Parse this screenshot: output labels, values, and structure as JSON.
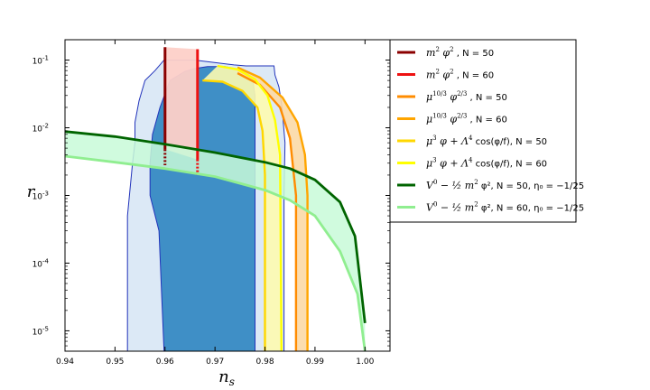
{
  "chart_data": {
    "type": "line",
    "title": "",
    "xlabel": "n_s",
    "ylabel": "r",
    "xlim": [
      0.94,
      1.005
    ],
    "ylim": [
      5e-06,
      0.2
    ],
    "yscale": "log",
    "grid": false,
    "legend_placement": "outside-right-top",
    "x_ticks": [
      "0.94",
      "0.95",
      "0.96",
      "0.97",
      "0.98",
      "0.99",
      "1.00"
    ],
    "y_ticks": [
      {
        "value": 0.1,
        "base": "10",
        "exp": "-1"
      },
      {
        "value": 0.01,
        "base": "10",
        "exp": "-2"
      },
      {
        "value": 0.001,
        "base": "10",
        "exp": "-3"
      },
      {
        "value": 0.0001,
        "base": "10",
        "exp": "-4"
      },
      {
        "value": 1e-05,
        "base": "10",
        "exp": "-5"
      }
    ],
    "contours": {
      "outer_fill": "#dce9f6",
      "inner_fill": "#3f8fc6",
      "edge": "#2233bb",
      "outer": [
        [
          0.9525,
          5e-06
        ],
        [
          0.9525,
          0.0005
        ],
        [
          0.9535,
          0.003
        ],
        [
          0.954,
          0.006
        ],
        [
          0.954,
          0.012
        ],
        [
          0.9548,
          0.025
        ],
        [
          0.956,
          0.05
        ],
        [
          0.958,
          0.07
        ],
        [
          0.9598,
          0.1
        ],
        [
          0.966,
          0.1
        ],
        [
          0.9738,
          0.085
        ],
        [
          0.9762,
          0.082
        ],
        [
          0.9818,
          0.082
        ],
        [
          0.982,
          0.06
        ],
        [
          0.9828,
          0.04
        ],
        [
          0.9834,
          0.02
        ],
        [
          0.984,
          0.006
        ],
        [
          0.9838,
          0.001
        ],
        [
          0.9838,
          0.0001
        ],
        [
          0.9838,
          5e-06
        ]
      ],
      "inner": [
        [
          0.9598,
          5e-06
        ],
        [
          0.9588,
          0.0003
        ],
        [
          0.957,
          0.001
        ],
        [
          0.957,
          0.003
        ],
        [
          0.9575,
          0.008
        ],
        [
          0.959,
          0.02
        ],
        [
          0.961,
          0.05
        ],
        [
          0.964,
          0.068
        ],
        [
          0.966,
          0.075
        ],
        [
          0.9685,
          0.08
        ],
        [
          0.972,
          0.08
        ],
        [
          0.9758,
          0.07
        ],
        [
          0.9775,
          0.055
        ],
        [
          0.978,
          0.03
        ],
        [
          0.978,
          0.01
        ],
        [
          0.978,
          0.001
        ],
        [
          0.978,
          5e-06
        ]
      ]
    },
    "bands": [
      {
        "fill": "#fdd0c8",
        "opacity": 0.95,
        "upper": [
          [
            0.96,
            0.155
          ],
          [
            0.9665,
            0.145
          ]
        ],
        "lower": [
          [
            0.96,
            0.0048
          ],
          [
            0.9665,
            0.0034
          ]
        ]
      },
      {
        "fill": "#fdfbb0",
        "opacity": 0.9,
        "upper": [
          [
            0.9705,
            0.082
          ],
          [
            0.9745,
            0.073
          ],
          [
            0.978,
            0.052
          ],
          [
            0.9805,
            0.03
          ],
          [
            0.982,
            0.013
          ],
          [
            0.983,
            0.004
          ],
          [
            0.9833,
            5e-06
          ]
        ],
        "lower": [
          [
            0.9675,
            0.05
          ],
          [
            0.9715,
            0.048
          ],
          [
            0.9755,
            0.035
          ],
          [
            0.9785,
            0.02
          ],
          [
            0.9795,
            0.009
          ],
          [
            0.98,
            0.002
          ],
          [
            0.98,
            5e-06
          ]
        ]
      },
      {
        "fill": "#fbd9a6",
        "opacity": 0.9,
        "upper": [
          [
            0.9745,
            0.078
          ],
          [
            0.979,
            0.055
          ],
          [
            0.9835,
            0.028
          ],
          [
            0.9865,
            0.012
          ],
          [
            0.988,
            0.004
          ],
          [
            0.9885,
            0.001
          ],
          [
            0.9885,
            5e-06
          ]
        ],
        "lower": [
          [
            0.9745,
            0.064
          ],
          [
            0.979,
            0.043
          ],
          [
            0.983,
            0.02
          ],
          [
            0.985,
            0.007
          ],
          [
            0.9862,
            0.001
          ],
          [
            0.9862,
            5e-06
          ]
        ]
      },
      {
        "fill": "#c8fad8",
        "opacity": 0.85,
        "upper": [
          [
            0.94,
            0.0088
          ],
          [
            0.95,
            0.0074
          ],
          [
            0.96,
            0.0057
          ],
          [
            0.97,
            0.0043
          ],
          [
            0.98,
            0.0031
          ],
          [
            0.985,
            0.0025
          ],
          [
            0.99,
            0.0017
          ],
          [
            0.995,
            0.0008
          ],
          [
            0.998,
            0.00025
          ],
          [
            1.0,
            1.3e-05
          ]
        ],
        "lower": [
          [
            0.94,
            0.0038
          ],
          [
            0.95,
            0.0031
          ],
          [
            0.96,
            0.0025
          ],
          [
            0.97,
            0.0019
          ],
          [
            0.98,
            0.0012
          ],
          [
            0.985,
            0.00085
          ],
          [
            0.99,
            0.0005
          ],
          [
            0.995,
            0.00015
          ],
          [
            0.9985,
            3.5e-05
          ],
          [
            1.0,
            5e-06
          ]
        ]
      }
    ],
    "series": [
      {
        "name": "m^2 phi^2, N = 50",
        "color": "#8b0000",
        "width": 3,
        "dashed_tail": [
          0.0048,
          0.0028
        ],
        "points": [
          [
            0.96,
            0.155
          ],
          [
            0.96,
            0.0048
          ]
        ]
      },
      {
        "name": "m^2 phi^2, N = 60",
        "color": "#ee1111",
        "width": 3,
        "dashed_tail": [
          0.0034,
          0.002
        ],
        "points": [
          [
            0.9665,
            0.145
          ],
          [
            0.9665,
            0.0034
          ]
        ]
      },
      {
        "name": "mu^(10/3) phi^(2/3), N = 50",
        "color": "#ff8c00",
        "width": 2.4,
        "points": [
          [
            0.9745,
            0.064
          ],
          [
            0.979,
            0.043
          ],
          [
            0.983,
            0.02
          ],
          [
            0.985,
            0.007
          ],
          [
            0.9862,
            0.001
          ],
          [
            0.9862,
            5e-06
          ]
        ]
      },
      {
        "name": "mu^(10/3) phi^(2/3), N = 60",
        "color": "#ffa500",
        "width": 2.4,
        "points": [
          [
            0.9745,
            0.078
          ],
          [
            0.979,
            0.055
          ],
          [
            0.9835,
            0.028
          ],
          [
            0.9865,
            0.012
          ],
          [
            0.988,
            0.004
          ],
          [
            0.9885,
            0.001
          ],
          [
            0.9885,
            5e-06
          ]
        ]
      },
      {
        "name": "mu^3 phi + Lambda^4 cos(phi/f), N = 50",
        "color": "#ffd700",
        "width": 2.4,
        "points": [
          [
            0.9675,
            0.05
          ],
          [
            0.9715,
            0.048
          ],
          [
            0.9755,
            0.035
          ],
          [
            0.9785,
            0.02
          ],
          [
            0.9795,
            0.009
          ],
          [
            0.98,
            0.002
          ],
          [
            0.98,
            5e-06
          ]
        ]
      },
      {
        "name": "mu^3 phi + Lambda^4 cos(phi/f), N = 60",
        "color": "#ffff00",
        "width": 2.4,
        "points": [
          [
            0.9705,
            0.082
          ],
          [
            0.9745,
            0.073
          ],
          [
            0.978,
            0.052
          ],
          [
            0.9805,
            0.03
          ],
          [
            0.982,
            0.013
          ],
          [
            0.983,
            0.004
          ],
          [
            0.9833,
            5e-06
          ]
        ]
      },
      {
        "name": "V0 - 1/2 m^2 phi^2, N = 50, eta0 = -1/25",
        "color": "#006400",
        "width": 2.8,
        "points": [
          [
            0.94,
            0.0088
          ],
          [
            0.95,
            0.0074
          ],
          [
            0.96,
            0.0057
          ],
          [
            0.97,
            0.0043
          ],
          [
            0.98,
            0.0031
          ],
          [
            0.985,
            0.0025
          ],
          [
            0.99,
            0.0017
          ],
          [
            0.995,
            0.0008
          ],
          [
            0.998,
            0.00025
          ],
          [
            1.0,
            1.3e-05
          ]
        ]
      },
      {
        "name": "V0 - 1/2 m^2 phi^2, N = 60, eta0 = -1/25",
        "color": "#90ee90",
        "width": 2.8,
        "points": [
          [
            0.94,
            0.0038
          ],
          [
            0.95,
            0.0031
          ],
          [
            0.96,
            0.0025
          ],
          [
            0.97,
            0.0019
          ],
          [
            0.98,
            0.0012
          ],
          [
            0.985,
            0.00085
          ],
          [
            0.99,
            0.0005
          ],
          [
            0.995,
            0.00015
          ],
          [
            0.9985,
            3.5e-05
          ],
          [
            1.0,
            5e-06
          ]
        ]
      }
    ],
    "legend": [
      {
        "color": "#8b0000",
        "m1": "m",
        "m1s": "2",
        "m2": " φ",
        "m2s": "2",
        "tail": " , N = 50"
      },
      {
        "color": "#ee1111",
        "m1": "m",
        "m1s": "2",
        "m2": " φ",
        "m2s": "2",
        "tail": " , N = 60"
      },
      {
        "color": "#ff8c00",
        "m1": "μ",
        "m1s": "10/3",
        "m2": " φ",
        "m2s": "2/3",
        "tail": " , N = 50"
      },
      {
        "color": "#ffa500",
        "m1": "μ",
        "m1s": "10/3",
        "m2": " φ",
        "m2s": "2/3",
        "tail": " , N = 60"
      },
      {
        "color": "#ffd700",
        "m1": "μ",
        "m1s": "3",
        "m2": " φ + Λ",
        "m2s": "4",
        "tail": " cos(φ/f), N = 50"
      },
      {
        "color": "#ffff00",
        "m1": "μ",
        "m1s": "3",
        "m2": " φ + Λ",
        "m2s": "4",
        "tail": " cos(φ/f), N = 60"
      },
      {
        "color": "#006400",
        "m1": "V",
        "m1s": "0",
        "m2": " − ½ m",
        "m2s": "2",
        "tail": " φ², N = 50, η₀ = −1/25"
      },
      {
        "color": "#90ee90",
        "m1": "V",
        "m1s": "0",
        "m2": " − ½ m",
        "m2s": "2",
        "tail": " φ², N = 60, η₀ = −1/25"
      }
    ]
  }
}
